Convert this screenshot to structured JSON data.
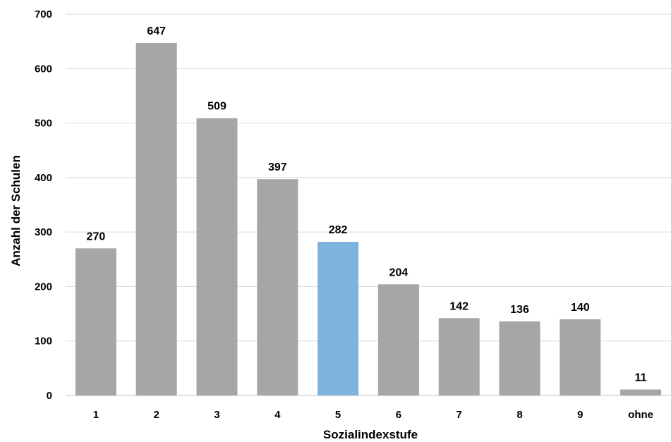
{
  "chart_data": {
    "type": "bar",
    "categories": [
      "1",
      "2",
      "3",
      "4",
      "5",
      "6",
      "7",
      "8",
      "9",
      "ohne"
    ],
    "values": [
      270,
      647,
      509,
      397,
      282,
      204,
      142,
      136,
      140,
      11
    ],
    "data_labels": [
      "270",
      "647",
      "509",
      "397",
      "282",
      "204",
      "142",
      "136",
      "140",
      "11"
    ],
    "highlight_index": 4,
    "xlabel": "Sozialindexstufe",
    "ylabel": "Anzahl der Schulen",
    "ylim": [
      0,
      700
    ],
    "yticks": [
      "0",
      "100",
      "200",
      "300",
      "400",
      "500",
      "600",
      "700"
    ],
    "grid": true,
    "colors": {
      "bar": "#a6a6a6",
      "highlight": "#7eb3e0",
      "gridline": "#d9d9d9"
    }
  }
}
